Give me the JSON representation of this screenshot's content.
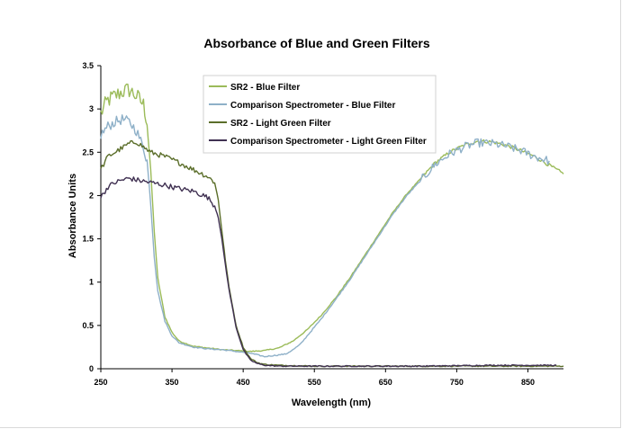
{
  "chart_data": {
    "type": "line",
    "title": "Absorbance of Blue and Green Filters",
    "xlabel": "Wavelength (nm)",
    "ylabel": "Absorbance Units",
    "xlim": [
      250,
      900
    ],
    "ylim": [
      0,
      3.5
    ],
    "xticks": [
      250,
      350,
      450,
      550,
      650,
      750,
      850
    ],
    "yticks": [
      0,
      0.5,
      1,
      1.5,
      2,
      2.5,
      3,
      3.5
    ],
    "ytick_labels": [
      "0",
      "0.5",
      "1",
      "1.5",
      "2",
      "2.5",
      "3",
      "3.5"
    ],
    "grid": false,
    "legend_position": "top-center",
    "series": [
      {
        "name": "SR2 - Blue Filter",
        "color": "#9bbb59",
        "x": [
          250,
          260,
          270,
          280,
          290,
          300,
          310,
          315,
          320,
          325,
          330,
          340,
          350,
          360,
          380,
          400,
          420,
          440,
          460,
          480,
          500,
          520,
          540,
          560,
          580,
          600,
          620,
          640,
          660,
          680,
          700,
          720,
          740,
          760,
          780,
          800,
          820,
          840,
          860,
          880,
          900
        ],
        "y": [
          2.95,
          3.1,
          3.15,
          3.2,
          3.22,
          3.15,
          3.05,
          2.85,
          2.3,
          1.6,
          1.05,
          0.6,
          0.42,
          0.32,
          0.26,
          0.24,
          0.22,
          0.21,
          0.2,
          0.21,
          0.24,
          0.32,
          0.45,
          0.62,
          0.82,
          1.05,
          1.3,
          1.55,
          1.8,
          2.02,
          2.2,
          2.38,
          2.5,
          2.58,
          2.63,
          2.62,
          2.58,
          2.52,
          2.45,
          2.35,
          2.25
        ]
      },
      {
        "name": "Comparison Spectrometer - Blue Filter",
        "color": "#8eb0c8",
        "x": [
          250,
          260,
          270,
          280,
          290,
          300,
          310,
          315,
          320,
          325,
          330,
          340,
          350,
          360,
          380,
          400,
          420,
          440,
          460,
          470,
          480,
          490,
          500,
          510,
          520,
          530,
          540,
          560,
          580,
          600,
          620,
          640,
          660,
          680,
          700,
          720,
          740,
          760,
          780,
          800,
          820,
          840,
          860,
          880
        ],
        "y": [
          2.7,
          2.8,
          2.85,
          2.88,
          2.85,
          2.75,
          2.55,
          2.4,
          1.9,
          1.3,
          0.9,
          0.55,
          0.38,
          0.3,
          0.25,
          0.23,
          0.22,
          0.2,
          0.18,
          0.16,
          0.14,
          0.15,
          0.16,
          0.17,
          0.22,
          0.28,
          0.38,
          0.58,
          0.8,
          1.03,
          1.28,
          1.53,
          1.78,
          2.0,
          2.18,
          2.36,
          2.48,
          2.56,
          2.61,
          2.6,
          2.57,
          2.52,
          2.45,
          2.4
        ]
      },
      {
        "name": "SR2 - Light Green Filter",
        "color": "#5b6e2a",
        "x": [
          250,
          260,
          270,
          280,
          290,
          300,
          320,
          340,
          360,
          380,
          400,
          410,
          415,
          420,
          425,
          430,
          440,
          450,
          460,
          470,
          480,
          500,
          550,
          600,
          700,
          800,
          900
        ],
        "y": [
          2.3,
          2.45,
          2.5,
          2.55,
          2.6,
          2.62,
          2.5,
          2.45,
          2.38,
          2.3,
          2.22,
          2.15,
          1.95,
          1.6,
          1.25,
          0.95,
          0.5,
          0.25,
          0.12,
          0.07,
          0.05,
          0.04,
          0.03,
          0.03,
          0.03,
          0.03,
          0.03
        ]
      },
      {
        "name": "Comparison Spectrometer - Light Green Filter",
        "color": "#403152",
        "x": [
          250,
          260,
          270,
          280,
          290,
          300,
          320,
          340,
          360,
          380,
          400,
          410,
          415,
          420,
          425,
          430,
          440,
          450,
          460,
          470,
          480,
          500,
          550,
          600,
          700,
          800,
          890
        ],
        "y": [
          1.98,
          2.1,
          2.15,
          2.18,
          2.2,
          2.18,
          2.15,
          2.12,
          2.08,
          2.05,
          1.98,
          1.88,
          1.75,
          1.5,
          1.2,
          0.92,
          0.48,
          0.22,
          0.1,
          0.06,
          0.04,
          0.03,
          0.03,
          0.03,
          0.03,
          0.04,
          0.04
        ]
      }
    ]
  }
}
